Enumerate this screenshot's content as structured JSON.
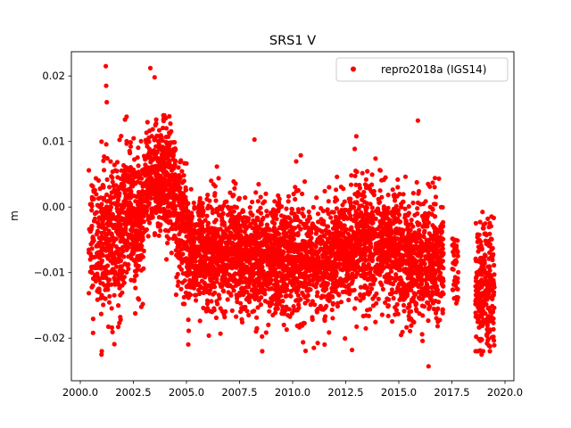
{
  "chart_data": {
    "type": "scatter",
    "title": "SRS1 V",
    "xlabel": "",
    "ylabel": "m",
    "xlim": [
      1999.58,
      2020.42
    ],
    "ylim": [
      -0.0265,
      0.0237
    ],
    "xticks": [
      2000.0,
      2002.5,
      2005.0,
      2007.5,
      2010.0,
      2012.5,
      2015.0,
      2017.5,
      2020.0
    ],
    "xtick_labels": [
      "2000.0",
      "2002.5",
      "2005.0",
      "2007.5",
      "2010.0",
      "2012.5",
      "2015.0",
      "2017.5",
      "2020.0"
    ],
    "yticks": [
      -0.02,
      -0.01,
      0.0,
      0.01,
      0.02
    ],
    "ytick_labels": [
      "−0.02",
      "−0.01",
      "0.00",
      "0.01",
      "0.02"
    ],
    "grid": false,
    "legend": {
      "placement": "top-right",
      "entries": [
        {
          "label": "repro2018a (IGS14)",
          "color": "#ff0000",
          "marker": "circle"
        }
      ]
    },
    "series": [
      {
        "name": "repro2018a (IGS14)",
        "color": "#ff0000",
        "note": "approximate daily series, summarized by segment (x range in decimal years, mean and std-dev in m)",
        "segments": [
          {
            "x": [
              2000.4,
              2001.0
            ],
            "mean": -0.005,
            "sd": 0.005,
            "n": 110
          },
          {
            "x": [
              2001.0,
              2002.0
            ],
            "mean": -0.005,
            "sd": 0.0055,
            "n": 300
          },
          {
            "x": [
              2002.0,
              2003.0
            ],
            "mean": -0.002,
            "sd": 0.005,
            "n": 330
          },
          {
            "x": [
              2003.0,
              2004.5
            ],
            "mean": 0.004,
            "sd": 0.0042,
            "n": 480
          },
          {
            "x": [
              2004.5,
              2005.0
            ],
            "mean": -0.003,
            "sd": 0.0045,
            "n": 150
          },
          {
            "x": [
              2005.0,
              2007.5
            ],
            "mean": -0.007,
            "sd": 0.0042,
            "n": 780
          },
          {
            "x": [
              2007.5,
              2012.0
            ],
            "mean": -0.008,
            "sd": 0.0042,
            "n": 1350
          },
          {
            "x": [
              2012.0,
              2015.0
            ],
            "mean": -0.006,
            "sd": 0.0045,
            "n": 900
          },
          {
            "x": [
              2015.0,
              2017.1
            ],
            "mean": -0.008,
            "sd": 0.0045,
            "n": 600
          },
          {
            "x": [
              2017.5,
              2017.8
            ],
            "mean": -0.01,
            "sd": 0.003,
            "n": 40
          },
          {
            "x": [
              2018.6,
              2019.5
            ],
            "mean": -0.012,
            "sd": 0.005,
            "n": 260
          }
        ],
        "outliers": [
          [
            2001.2,
            0.0215
          ],
          [
            2001.22,
            0.0185
          ],
          [
            2001.25,
            0.016
          ],
          [
            2003.3,
            0.0212
          ],
          [
            2003.5,
            0.0198
          ],
          [
            2015.9,
            0.0132
          ],
          [
            2016.4,
            -0.0243
          ],
          [
            2001.0,
            -0.0225
          ],
          [
            2018.9,
            -0.0225
          ],
          [
            2000.6,
            -0.0192
          ],
          [
            2013.0,
            0.0108
          ],
          [
            2008.2,
            0.0103
          ],
          [
            2012.8,
            -0.0218
          ],
          [
            2011.0,
            -0.0215
          ]
        ]
      }
    ]
  }
}
